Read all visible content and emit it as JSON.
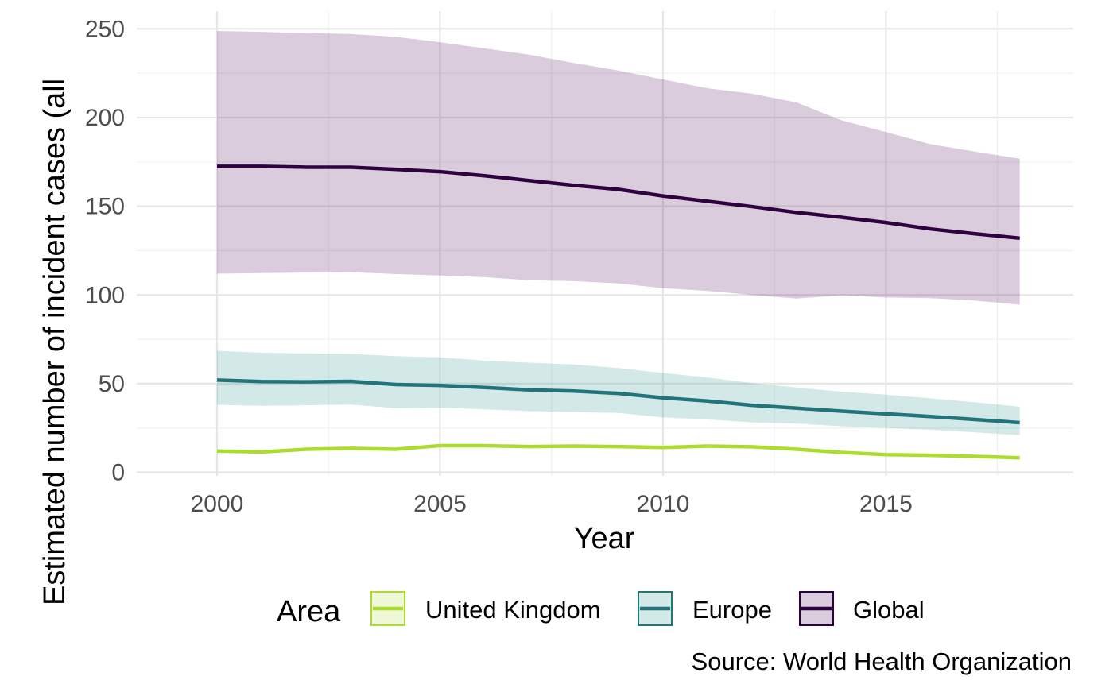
{
  "chart_data": {
    "type": "line",
    "xlabel": "Year",
    "ylabel": "Estimated number of incident cases (all",
    "caption": "Source: World Health Organization",
    "xlim": [
      1998.2,
      2019.2
    ],
    "ylim": [
      -2,
      260
    ],
    "x_ticks": [
      2000,
      2005,
      2010,
      2015
    ],
    "y_ticks": [
      0,
      50,
      100,
      150,
      200,
      250
    ],
    "grid": true,
    "legend": {
      "title": "Area",
      "position": "bottom"
    },
    "x": [
      2000,
      2001,
      2002,
      2003,
      2004,
      2005,
      2006,
      2007,
      2008,
      2009,
      2010,
      2011,
      2012,
      2013,
      2014,
      2015,
      2016,
      2017,
      2018
    ],
    "series": [
      {
        "name": "United Kingdom",
        "color": "#addc30",
        "values": [
          12,
          11.5,
          13,
          13.5,
          13,
          15,
          15,
          14.5,
          14.8,
          14.5,
          14,
          14.8,
          14.4,
          13,
          11.2,
          10,
          9.6,
          9,
          8.2
        ],
        "lower": [
          11.5,
          11,
          12.5,
          13,
          12.5,
          14.5,
          14.5,
          14,
          14.3,
          14,
          13.5,
          14.3,
          13.9,
          12.5,
          10.7,
          9.5,
          9.1,
          8.5,
          7.7
        ],
        "upper": [
          12.5,
          12,
          13.5,
          14,
          13.5,
          15.5,
          15.5,
          15,
          15.3,
          15,
          14.5,
          15.3,
          14.9,
          13.5,
          11.7,
          10.5,
          10.1,
          9.5,
          8.7
        ]
      },
      {
        "name": "Europe",
        "color": "#21918c",
        "line_color": "#22737a",
        "values": [
          52,
          51.2,
          51,
          51.3,
          49.5,
          49,
          47.8,
          46.5,
          45.8,
          44.5,
          42,
          40.2,
          37.8,
          36.2,
          34.5,
          33,
          31.5,
          29.8,
          28
        ],
        "lower": [
          38,
          37.5,
          37.8,
          38.2,
          36.2,
          36.5,
          35.5,
          34.5,
          34,
          33.5,
          31,
          29.8,
          28.2,
          27.5,
          26,
          25,
          24,
          22.5,
          21
        ],
        "upper": [
          68.5,
          67.5,
          67,
          66.8,
          65.5,
          64.8,
          63,
          61.8,
          60.8,
          58.8,
          56,
          53.5,
          50.3,
          47.8,
          45.5,
          43.8,
          41.7,
          39.5,
          37
        ]
      },
      {
        "name": "Global",
        "color": "#440154",
        "line_color": "#2e0140",
        "values": [
          172.5,
          172.5,
          172,
          172,
          170.8,
          169.5,
          167.2,
          164.5,
          161.8,
          159.5,
          155.8,
          152.8,
          149.8,
          146.5,
          143.8,
          140.8,
          137.2,
          134.5,
          132
        ],
        "lower": [
          112,
          112.3,
          112.6,
          112.8,
          111.8,
          111,
          110,
          108.3,
          107.8,
          106.5,
          103.8,
          102.3,
          100,
          98,
          99.8,
          98.6,
          98.2,
          96.8,
          94.5
        ],
        "upper": [
          248.8,
          248.3,
          247.6,
          247.1,
          245.5,
          242.5,
          239,
          235.5,
          230.8,
          226.5,
          221.5,
          216.5,
          213.5,
          208.5,
          198.5,
          191.8,
          185,
          180.8,
          176.8
        ]
      }
    ]
  }
}
